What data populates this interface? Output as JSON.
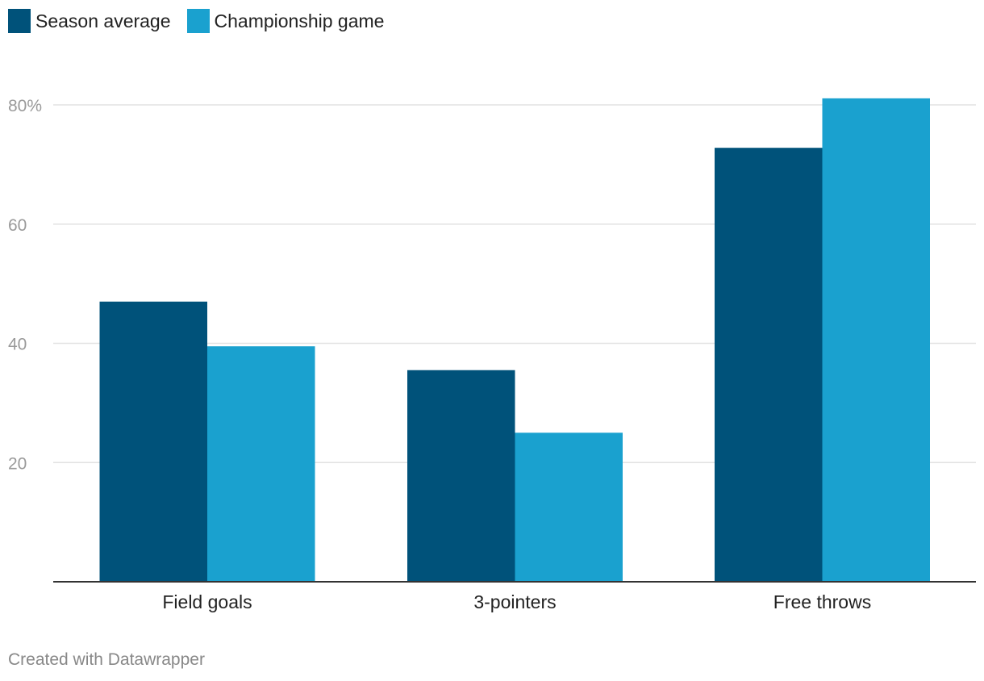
{
  "legend": [
    {
      "label": "Season average",
      "color": "#00527a"
    },
    {
      "label": "Championship game",
      "color": "#1aa1cf"
    }
  ],
  "footer": "Created with Datawrapper",
  "chart_data": {
    "type": "bar",
    "categories": [
      "Field goals",
      "3-pointers",
      "Free throws"
    ],
    "series": [
      {
        "name": "Season average",
        "color": "#00527a",
        "values": [
          47.0,
          35.5,
          72.8
        ]
      },
      {
        "name": "Championship game",
        "color": "#1aa1cf",
        "values": [
          39.5,
          25.0,
          81.1
        ]
      }
    ],
    "yticks": [
      20,
      40,
      60,
      80
    ],
    "ytick_labels": [
      "20",
      "40",
      "60",
      "80%"
    ],
    "ylim": [
      0,
      80
    ],
    "grid": true,
    "legend_position": "top-left"
  }
}
